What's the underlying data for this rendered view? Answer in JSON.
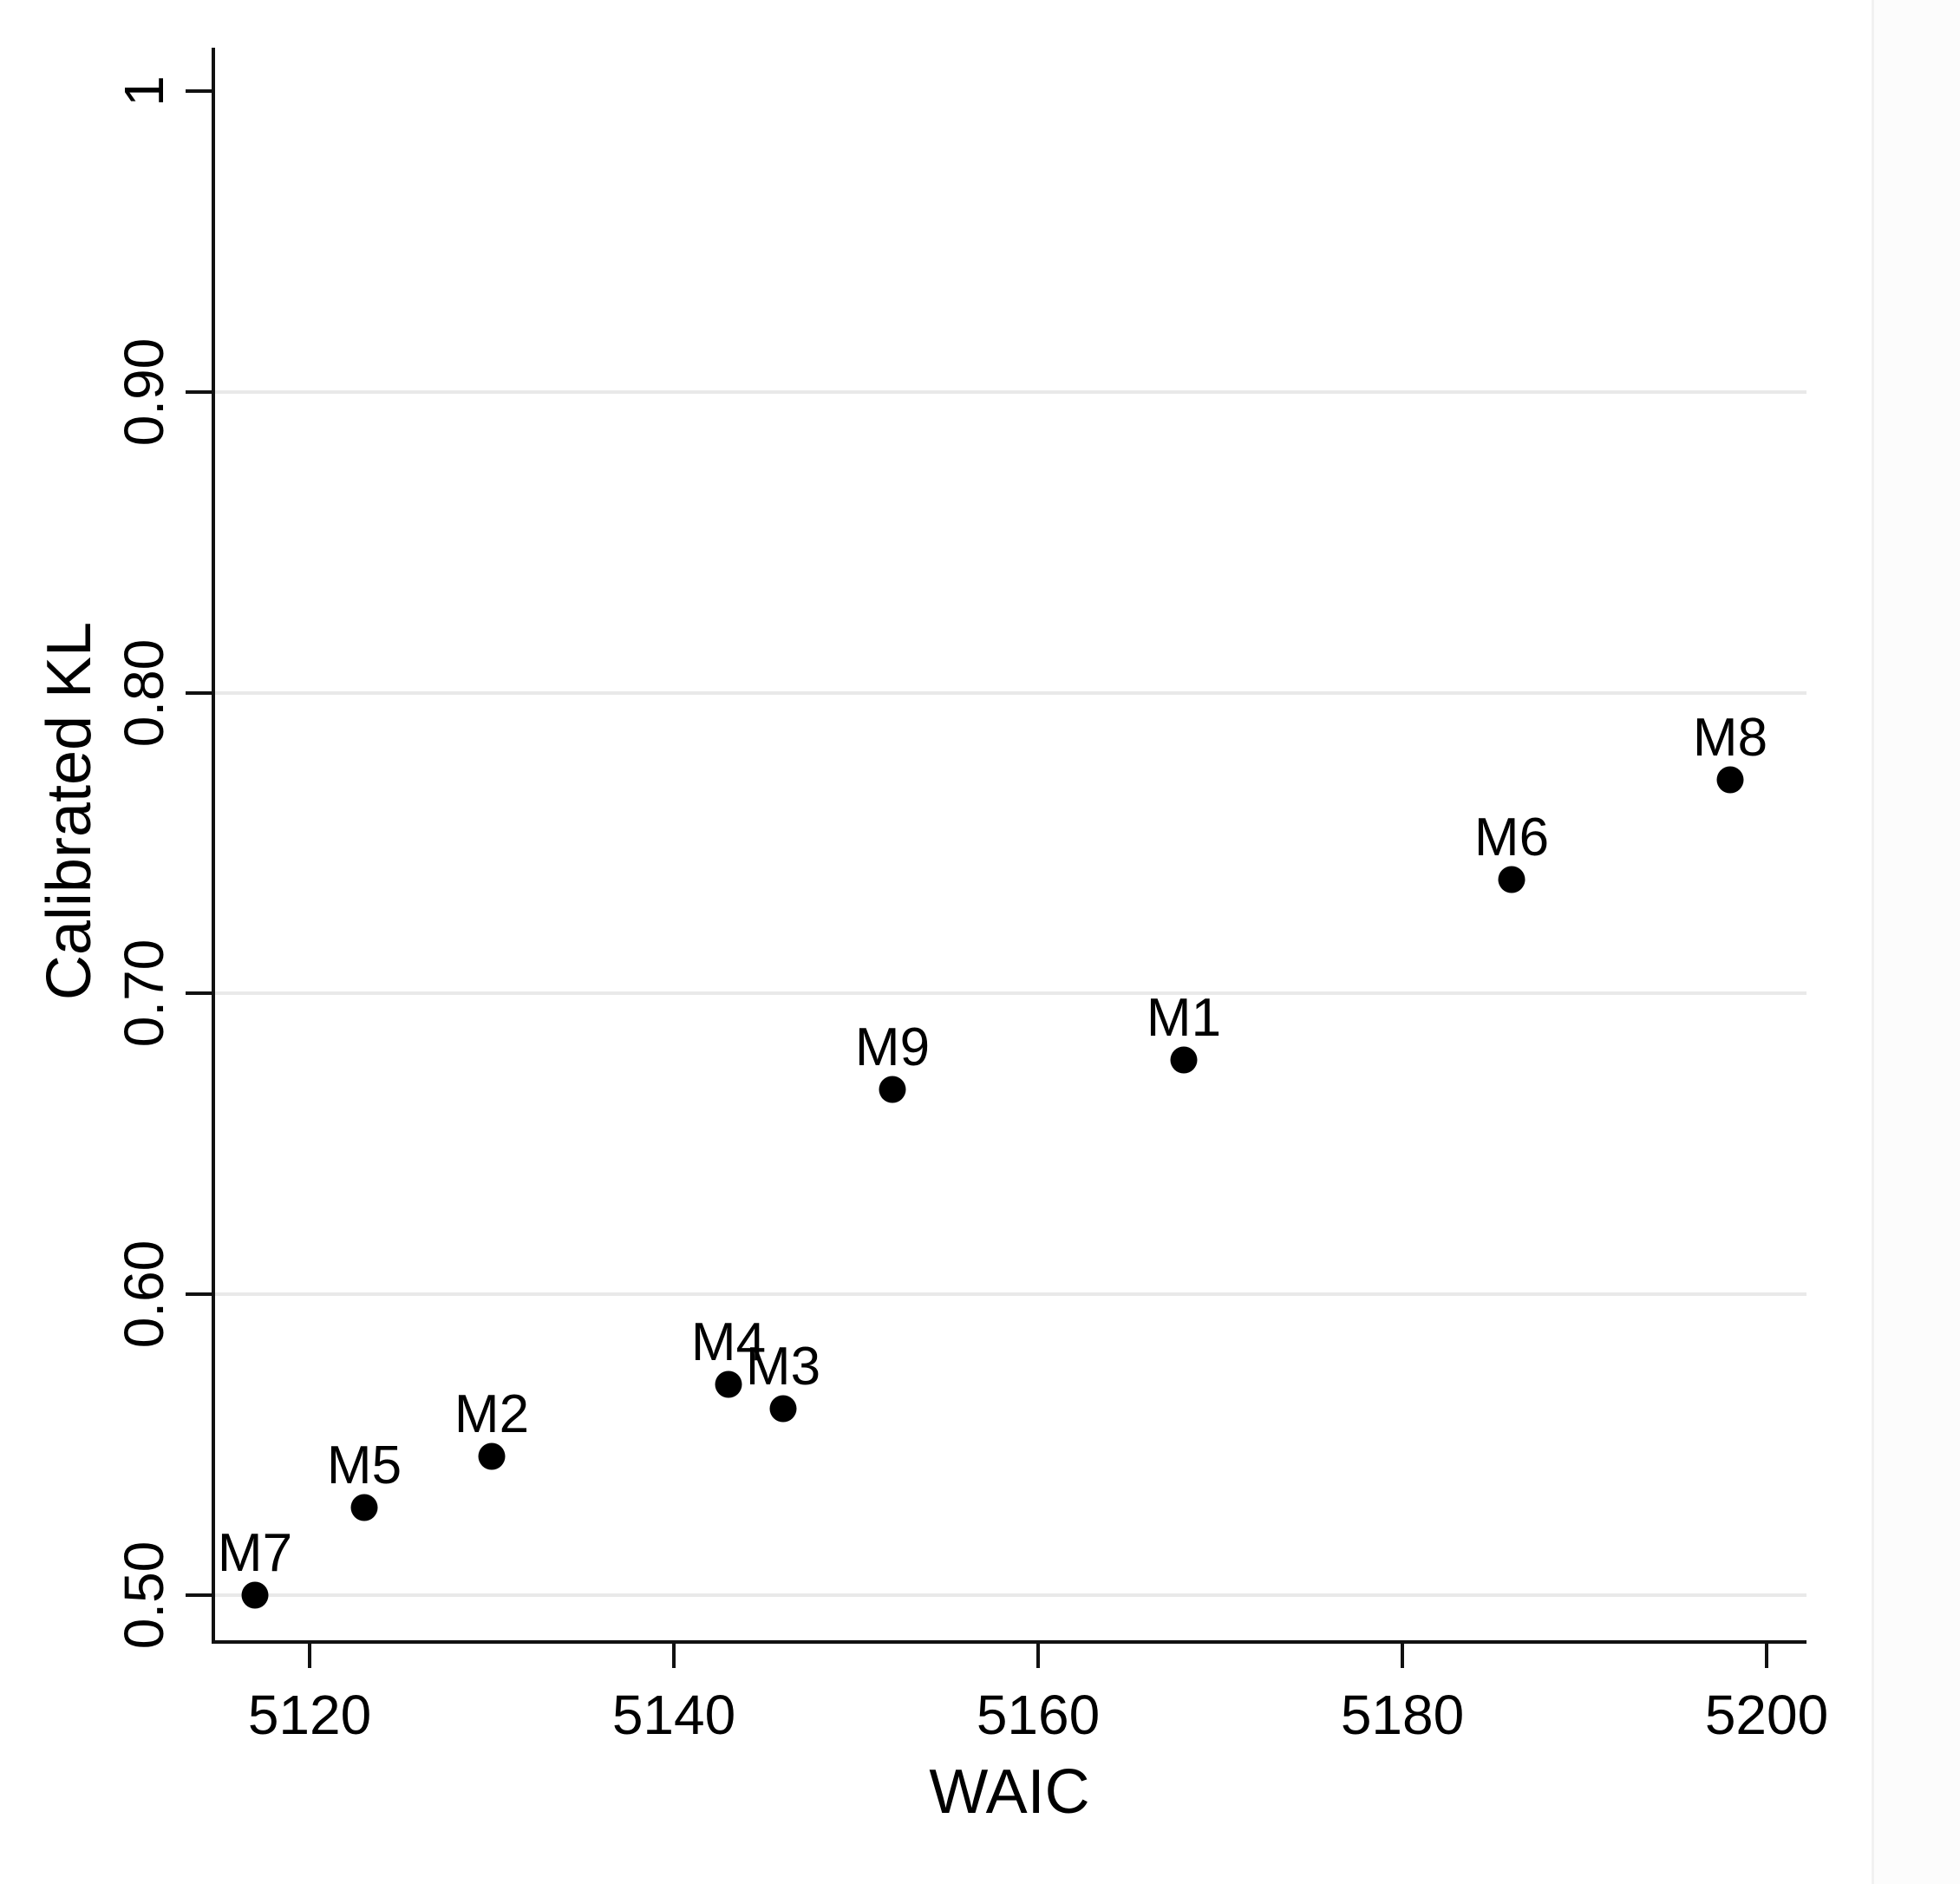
{
  "window": {
    "background": "#ffffff"
  },
  "chart_data": {
    "type": "scatter",
    "title": "",
    "xlabel": "WAIC",
    "ylabel": "Calibrated KL",
    "x_ticks": [
      {
        "value": 5120,
        "label": "5120"
      },
      {
        "value": 5140,
        "label": "5140"
      },
      {
        "value": 5160,
        "label": "5160"
      },
      {
        "value": 5180,
        "label": "5180"
      },
      {
        "value": 5200,
        "label": "5200"
      }
    ],
    "y_ticks": [
      {
        "value": 1.0,
        "label": "1"
      },
      {
        "value": 0.9,
        "label": "0.90"
      },
      {
        "value": 0.8,
        "label": "0.80"
      },
      {
        "value": 0.7,
        "label": "0.70"
      },
      {
        "value": 0.6,
        "label": "0.60"
      },
      {
        "value": 0.5,
        "label": "0.50"
      }
    ],
    "xlim": [
      5114.8,
      5202.2
    ],
    "ylim": [
      0.4845,
      1.0145
    ],
    "grid": {
      "horizontal_at": [
        0.9,
        0.8,
        0.7,
        0.6,
        0.5
      ],
      "vertical": false
    },
    "legend_position": "none",
    "marker": "filled-circle",
    "points": [
      {
        "label": "M7",
        "waic": 5117,
        "kl": 0.5
      },
      {
        "label": "M5",
        "waic": 5123,
        "kl": 0.529
      },
      {
        "label": "M2",
        "waic": 5130,
        "kl": 0.546
      },
      {
        "label": "M4",
        "waic": 5143,
        "kl": 0.57
      },
      {
        "label": "M3",
        "waic": 5146,
        "kl": 0.562
      },
      {
        "label": "M9",
        "waic": 5152,
        "kl": 0.668
      },
      {
        "label": "M1",
        "waic": 5168,
        "kl": 0.678
      },
      {
        "label": "M6",
        "waic": 5186,
        "kl": 0.738
      },
      {
        "label": "M8",
        "waic": 5198,
        "kl": 0.771
      }
    ],
    "colors": {
      "point": "#000000",
      "text": "#000000",
      "axis": "#111111",
      "gridline": "#e9e9e9",
      "right_margin_band": "#fcfcfc",
      "right_margin_edge": "#f1f1f1"
    }
  }
}
